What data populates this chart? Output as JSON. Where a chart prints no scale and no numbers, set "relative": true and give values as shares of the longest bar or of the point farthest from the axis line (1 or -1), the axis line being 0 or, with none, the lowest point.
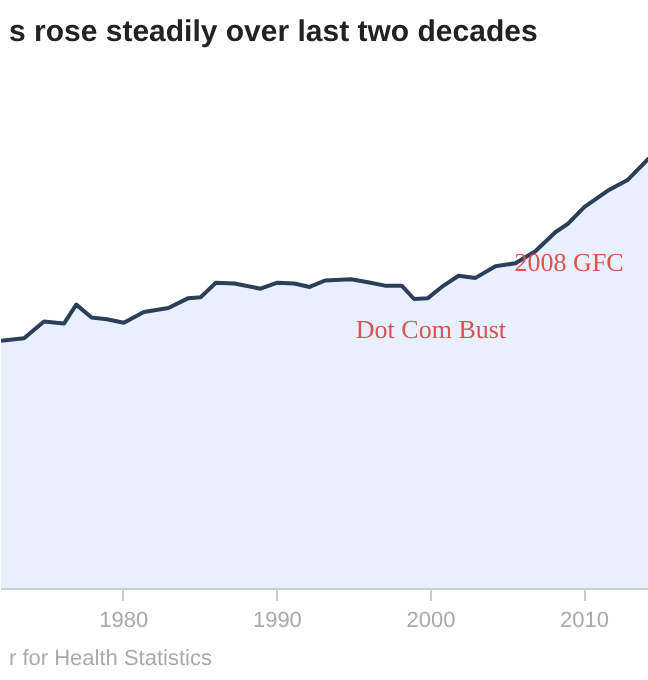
{
  "chart_data": {
    "type": "area",
    "title": "s rose steadily over last two decades",
    "relative": true,
    "x": [
      1972.0,
      1973.5,
      1974.8,
      1976.1,
      1976.9,
      1977.9,
      1978.9,
      1980.0,
      1981.3,
      1982.9,
      1984.2,
      1985.0,
      1986.0,
      1987.2,
      1988.9,
      1990.0,
      1991.1,
      1992.1,
      1993.1,
      1994.8,
      1995.9,
      1997.0,
      1998.1,
      1998.9,
      1999.8,
      2000.7,
      2001.8,
      2002.9,
      2004.2,
      2005.5,
      2006.8,
      2008.1,
      2008.9,
      2010.0,
      2011.5,
      2012.8,
      2014.2
    ],
    "series": [
      {
        "color": "#2c3e5a",
        "values": [
          0.576,
          0.582,
          0.621,
          0.616,
          0.66,
          0.63,
          0.626,
          0.618,
          0.643,
          0.652,
          0.675,
          0.677,
          0.711,
          0.709,
          0.697,
          0.711,
          0.709,
          0.701,
          0.716,
          0.719,
          0.712,
          0.704,
          0.704,
          0.673,
          0.675,
          0.701,
          0.727,
          0.722,
          0.749,
          0.756,
          0.784,
          0.828,
          0.847,
          0.887,
          0.924,
          0.949,
          1.0
        ]
      }
    ],
    "xlim": [
      1972.0,
      2014.2
    ],
    "xticks": [
      1980,
      1990,
      2000,
      2010
    ],
    "annotations": [
      {
        "text": "Dot Com Bust",
        "x": 2000,
        "y": 0.675
      },
      {
        "text": "2008 GFC",
        "x": 2009,
        "y": 0.83
      },
      "r for Health Statistics"
    ]
  }
}
